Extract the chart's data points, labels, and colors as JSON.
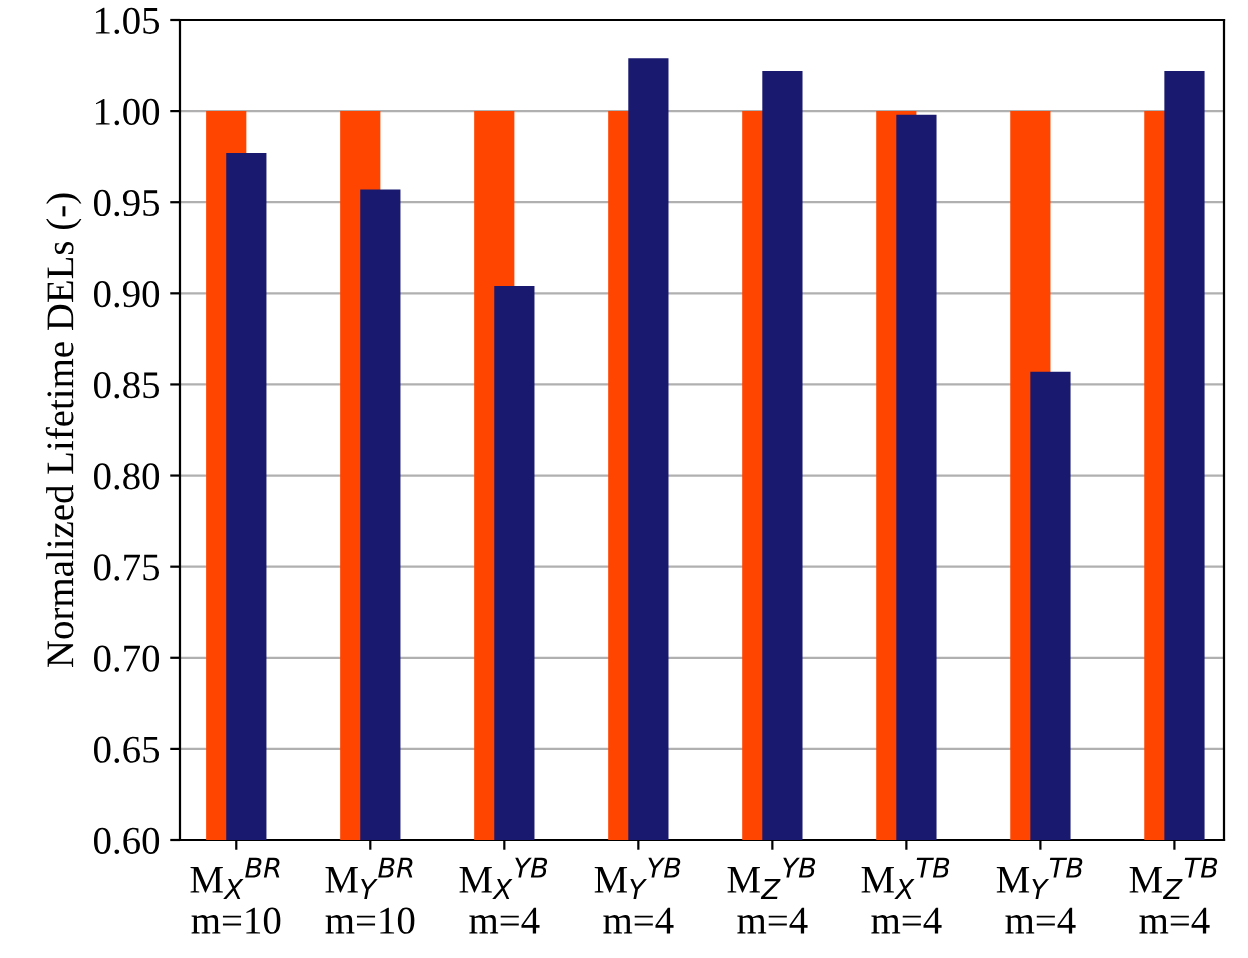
{
  "chart_data": {
    "type": "bar",
    "ylabel": "Normalized Lifetime DELs (-)",
    "categories": [
      "M$_{X}$$^{BR}$\nm=10",
      "M$_{Y}$$^{BR}$\nm=10",
      "M$_{X}$$^{YB}$\nm=4",
      "M$_{Y}$$^{YB}$\nm=4",
      "M$_{Z}$$^{YB}$\nm=4",
      "M$_{X}$$^{TB}$\nm=4",
      "M$_{Y}$$^{TB}$\nm=4",
      "M$_{Z}$$^{TB}$\nm=4"
    ],
    "series": [
      {
        "color": "#ff4500",
        "values": [
          1.0,
          1.0,
          1.0,
          1.0,
          1.0,
          1.0,
          1.0,
          1.0
        ]
      },
      {
        "color": "#191970",
        "values": [
          0.977,
          0.957,
          0.904,
          1.029,
          1.022,
          0.998,
          0.857,
          1.022
        ]
      }
    ],
    "ylim": [
      0.6,
      1.05
    ],
    "yticks": [
      {
        "value": 0.6,
        "label": "0.60"
      },
      {
        "value": 0.65,
        "label": "0.65"
      },
      {
        "value": 0.7,
        "label": "0.70"
      },
      {
        "value": 0.75,
        "label": "0.75"
      },
      {
        "value": 0.8,
        "label": "0.80"
      },
      {
        "value": 0.85,
        "label": "0.85"
      },
      {
        "value": 0.9,
        "label": "0.90"
      },
      {
        "value": 0.95,
        "label": "0.95"
      },
      {
        "value": 1.0,
        "label": "1.00"
      },
      {
        "value": 1.05,
        "label": "1.05"
      }
    ],
    "grid": "y"
  }
}
